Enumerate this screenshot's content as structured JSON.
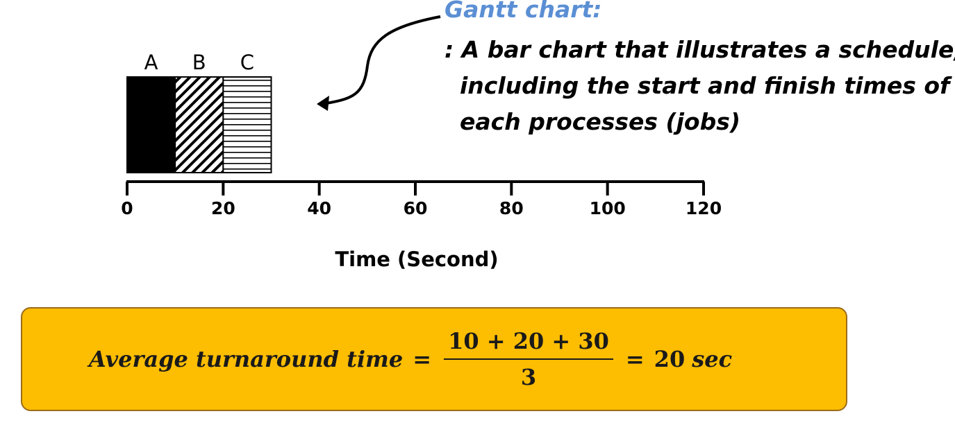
{
  "chart_data": {
    "type": "bar",
    "orientation": "horizontal-timeline",
    "xlabel": "Time (Second)",
    "xlim": [
      0,
      120
    ],
    "x_ticks": [
      "0",
      "20",
      "40",
      "60",
      "80",
      "100",
      "120"
    ],
    "x_tick_values": [
      0,
      20,
      40,
      60,
      80,
      100,
      120
    ],
    "series": [
      {
        "name": "A",
        "start": 0,
        "end": 10,
        "pattern": "solid-black"
      },
      {
        "name": "B",
        "start": 10,
        "end": 20,
        "pattern": "diagonal-hatch"
      },
      {
        "name": "C",
        "start": 20,
        "end": 30,
        "pattern": "horizontal-hatch"
      }
    ],
    "grid": false
  },
  "annotation": {
    "title": "Gantt chart:",
    "lines": [
      ": A bar chart that illustrates a schedule,",
      "including the start and finish times of",
      "each processes (jobs)"
    ],
    "title_color": "#5b8fd4",
    "arrow_icon": "curved-arrow-icon"
  },
  "formula": {
    "lhs": "Average turnaround time",
    "equals": "=",
    "numerator": "10 + 20 + 30",
    "denominator": "3",
    "rhs_value": "20",
    "rhs_unit": "sec",
    "box_color": "#fdbd01"
  }
}
